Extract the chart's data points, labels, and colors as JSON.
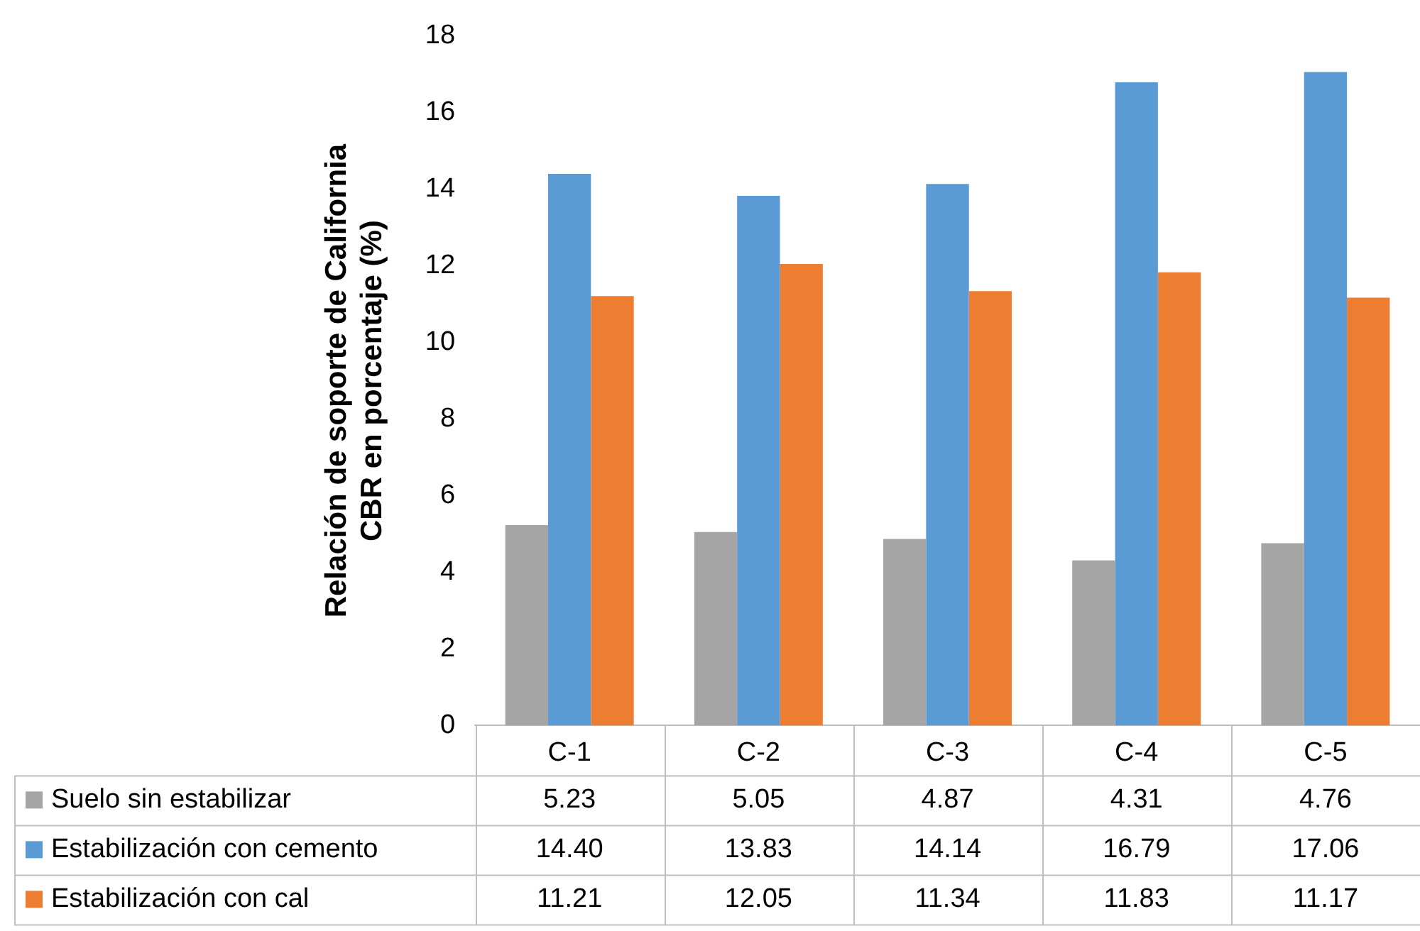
{
  "chart_data": {
    "type": "bar",
    "ylabel": "Relación de soporte de California\nCBR en porcentaje (%)",
    "categories": [
      "C-1",
      "C-2",
      "C-3",
      "C-4",
      "C-5"
    ],
    "series": [
      {
        "name": "Suelo sin estabilizar",
        "color": "#a5a5a5",
        "values": [
          5.23,
          5.05,
          4.87,
          4.31,
          4.76
        ],
        "value_labels": [
          "5.23",
          "5.05",
          "4.87",
          "4.31",
          "4.76"
        ]
      },
      {
        "name": "Estabilización con cemento",
        "color": "#5b9bd5",
        "values": [
          14.4,
          13.83,
          14.14,
          16.79,
          17.06
        ],
        "value_labels": [
          "14.40",
          "13.83",
          "14.14",
          "16.79",
          "17.06"
        ]
      },
      {
        "name": "Estabilización con cal",
        "color": "#ed7d31",
        "values": [
          11.21,
          12.05,
          11.34,
          11.83,
          11.17
        ],
        "value_labels": [
          "11.21",
          "12.05",
          "11.34",
          "11.83",
          "11.17"
        ]
      }
    ],
    "ylim": [
      0,
      18
    ],
    "yticks": [
      0,
      2,
      4,
      6,
      8,
      10,
      12,
      14,
      16,
      18
    ],
    "grid": false,
    "legend": "bottom"
  }
}
